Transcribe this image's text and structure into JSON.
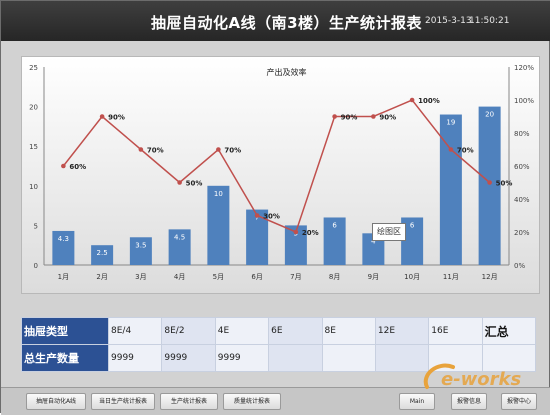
{
  "header": {
    "title": "抽屉自动化A线（南3楼）生产统计报表",
    "date": "2015-3-13",
    "time": "11:50:21"
  },
  "chart_data": {
    "type": "bar+line",
    "title": "产出及效率",
    "categories": [
      "1月",
      "2月",
      "3月",
      "4月",
      "5月",
      "6月",
      "7月",
      "8月",
      "9月",
      "10月",
      "11月",
      "12月"
    ],
    "series": [
      {
        "type": "bar",
        "axis": "left",
        "values": [
          4.3,
          2.5,
          3.5,
          4.5,
          10,
          7,
          5,
          6,
          4,
          6,
          19,
          20
        ],
        "labels": [
          "4.3",
          "2.5",
          "3.5",
          "4.5",
          "10",
          "7",
          "5",
          "6",
          "4",
          "6",
          "19",
          "20"
        ]
      },
      {
        "type": "line",
        "axis": "right",
        "values": [
          60,
          90,
          70,
          50,
          70,
          30,
          20,
          90,
          90,
          100,
          70,
          50
        ],
        "labels": [
          "60%",
          "90%",
          "70%",
          "50%",
          "70%",
          "30%",
          "20%",
          "90%",
          "90%",
          "100%",
          "70%",
          "50%"
        ]
      }
    ],
    "left_axis": {
      "ylim": [
        0,
        25
      ],
      "ticks": [
        "0",
        "5",
        "10",
        "15",
        "20",
        "25"
      ]
    },
    "right_axis": {
      "ylim": [
        0,
        120
      ],
      "ticks": [
        "0%",
        "20%",
        "40%",
        "60%",
        "80%",
        "100%",
        "120%"
      ]
    },
    "colors": {
      "bar": "#4f81bd",
      "line": "#c0504d"
    },
    "tooltip": "绘图区"
  },
  "table": {
    "rows": [
      {
        "header": "抽屉类型",
        "cells": [
          "8E/4",
          "8E/2",
          "4E",
          "6E",
          "8E",
          "12E",
          "16E",
          "汇总"
        ]
      },
      {
        "header": "总生产数量",
        "cells": [
          "9999",
          "9999",
          "9999",
          "",
          "",
          "",
          "",
          ""
        ]
      }
    ]
  },
  "buttons": [
    "抽屉自动化A线",
    "当日生产统计报表",
    "生产统计报表",
    "质量统计报表",
    "Main",
    "报警信息",
    "报警中心"
  ],
  "watermark": "e-works"
}
